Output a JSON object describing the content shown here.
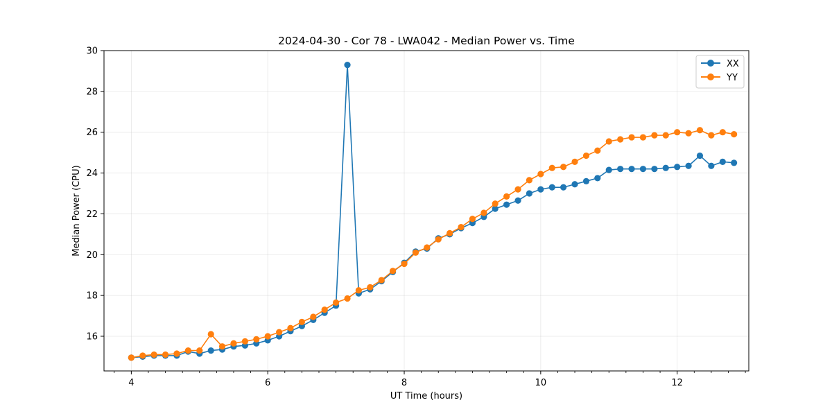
{
  "chart_data": {
    "type": "line",
    "title": "2024-04-30 - Cor 78 - LWA042 - Median Power vs. Time",
    "xlabel": "UT Time (hours)",
    "ylabel": "Median Power (CPU)",
    "xlim": [
      3.6,
      13.05
    ],
    "ylim": [
      14.3,
      30
    ],
    "xticks": [
      4,
      6,
      8,
      10,
      12
    ],
    "xticks_minor": [
      3.75,
      4.25,
      4.5,
      4.75,
      5,
      5.25,
      5.5,
      5.75,
      6.25,
      6.5,
      6.75,
      7,
      7.25,
      7.5,
      7.75,
      8.25,
      8.5,
      8.75,
      9,
      9.25,
      9.5,
      9.75,
      10.25,
      10.5,
      10.75,
      11,
      11.25,
      11.5,
      11.75,
      12.25,
      12.5,
      12.75,
      13
    ],
    "yticks": [
      16,
      18,
      20,
      22,
      24,
      26,
      28,
      30
    ],
    "grid": true,
    "legend_position": "top-right",
    "x": [
      4.0,
      4.167,
      4.333,
      4.5,
      4.667,
      4.833,
      5.0,
      5.167,
      5.333,
      5.5,
      5.667,
      5.833,
      6.0,
      6.167,
      6.333,
      6.5,
      6.667,
      6.833,
      7.0,
      7.167,
      7.333,
      7.5,
      7.667,
      7.833,
      8.0,
      8.167,
      8.333,
      8.5,
      8.667,
      8.833,
      9.0,
      9.167,
      9.333,
      9.5,
      9.667,
      9.833,
      10.0,
      10.167,
      10.333,
      10.5,
      10.667,
      10.833,
      11.0,
      11.167,
      11.333,
      11.5,
      11.667,
      11.833,
      12.0,
      12.167,
      12.333,
      12.5,
      12.667,
      12.833
    ],
    "series": [
      {
        "name": "XX",
        "color": "#1f77b4",
        "values": [
          14.95,
          15.0,
          15.05,
          15.05,
          15.05,
          15.25,
          15.15,
          15.3,
          15.35,
          15.5,
          15.55,
          15.65,
          15.8,
          16.0,
          16.25,
          16.5,
          16.8,
          17.15,
          17.5,
          29.3,
          18.1,
          18.3,
          18.7,
          19.15,
          19.6,
          20.15,
          20.3,
          20.8,
          21.0,
          21.3,
          21.55,
          21.85,
          22.25,
          22.45,
          22.65,
          23.0,
          23.2,
          23.3,
          23.3,
          23.45,
          23.6,
          23.75,
          24.15,
          24.2,
          24.2,
          24.2,
          24.2,
          24.25,
          24.3,
          24.35,
          24.85,
          24.35,
          24.55,
          24.5
        ]
      },
      {
        "name": "YY",
        "color": "#ff7f0e",
        "values": [
          14.95,
          15.05,
          15.1,
          15.1,
          15.15,
          15.3,
          15.3,
          16.1,
          15.5,
          15.65,
          15.75,
          15.85,
          16.0,
          16.2,
          16.4,
          16.7,
          16.95,
          17.3,
          17.65,
          17.85,
          18.25,
          18.4,
          18.75,
          19.2,
          19.55,
          20.1,
          20.35,
          20.75,
          21.05,
          21.35,
          21.75,
          22.05,
          22.5,
          22.85,
          23.2,
          23.65,
          23.95,
          24.25,
          24.3,
          24.55,
          24.85,
          25.1,
          25.55,
          25.65,
          25.75,
          25.75,
          25.85,
          25.85,
          26.0,
          25.95,
          26.1,
          25.85,
          26.0,
          25.9
        ]
      }
    ]
  }
}
